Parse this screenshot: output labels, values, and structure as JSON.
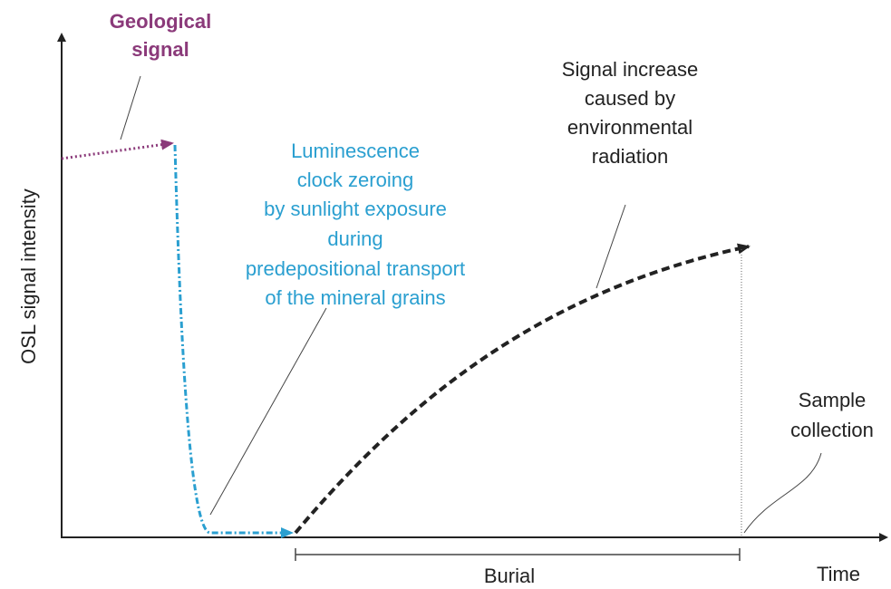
{
  "labels": {
    "geological_signal": [
      "Geological",
      "signal"
    ],
    "y_axis": "OSL signal intensity",
    "zeroing": [
      "Luminescence",
      "clock zeroing",
      "by sunlight exposure",
      "during",
      "predepositional transport",
      "of the mineral grains"
    ],
    "increase": [
      "Signal increase",
      "caused by",
      "environmental",
      "radiation"
    ],
    "sample": [
      "Sample",
      "collection"
    ],
    "burial": "Burial",
    "x_axis": "Time"
  }
}
